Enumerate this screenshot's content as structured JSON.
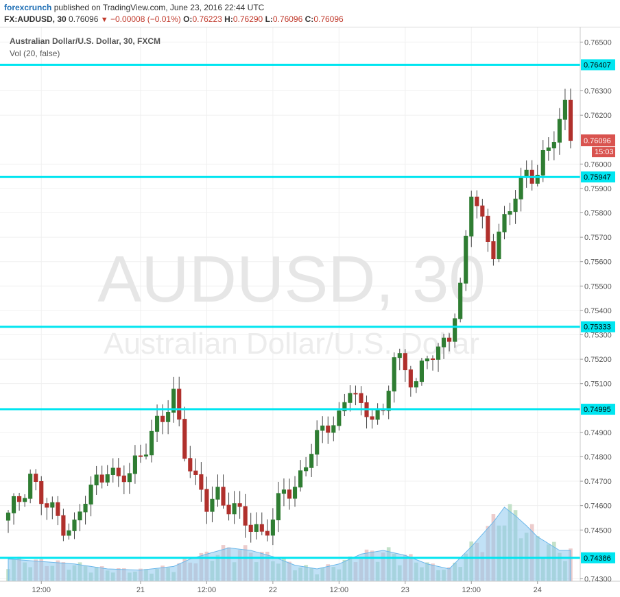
{
  "header": {
    "brand": "forexcrunch",
    "published": "published on TradingView.com, June 23, 2016 22:44 UTC",
    "symbol": "FX:AUDUSD, 30",
    "last": "0.76096",
    "arrow": "▼",
    "change": "−0.00008 (−0.01%)",
    "o_label": "O:",
    "o_value": "0.76223",
    "h_label": "H:",
    "h_value": "0.76290",
    "l_label": "L:",
    "l_value": "0.76096",
    "c_label": "C:",
    "c_value": "0.76096"
  },
  "legend": {
    "title": "Australian Dollar/U.S. Dollar, 30, FXCM",
    "volume": "Vol (20, false)"
  },
  "watermark": {
    "line1": "AUDUSD, 30",
    "line2": "Australian Dollar/U.S. Dollar"
  },
  "colors": {
    "up": "#2f7d32",
    "down": "#b0302c",
    "level": "#00e5f0",
    "volume_up": "#b9dcc0",
    "volume_down": "#e9c3c3",
    "volume_ma": "#8ec9ef",
    "price_tag": "#d9534f"
  },
  "chart_data": {
    "type": "candlestick",
    "ylim": [
      0.7429,
      0.7656
    ],
    "y_ticks": [
      "0.76500",
      "0.76300",
      "0.76200",
      "0.76000",
      "0.75900",
      "0.75800",
      "0.75700",
      "0.75600",
      "0.75500",
      "0.75400",
      "0.75300",
      "0.75200",
      "0.75100",
      "0.74900",
      "0.74800",
      "0.74700",
      "0.74600",
      "0.74500",
      "0.74300"
    ],
    "x_ticks": [
      "12:00",
      "21",
      "12:00",
      "22",
      "12:00",
      "23",
      "12:00",
      "24"
    ],
    "x_tick_positions": [
      6,
      24,
      36,
      48,
      60,
      72,
      84,
      96
    ],
    "horizontal_levels": [
      "0.76407",
      "0.75947",
      "0.75333",
      "0.74995",
      "0.74386"
    ],
    "last_price_label": "0.76096",
    "countdown_label": "15:03",
    "anchors": [
      [
        0,
        0.7455
      ],
      [
        2,
        0.7463
      ],
      [
        4,
        0.7473
      ],
      [
        6,
        0.7462
      ],
      [
        8,
        0.7457
      ],
      [
        10,
        0.7453
      ],
      [
        12,
        0.7451
      ],
      [
        14,
        0.7462
      ],
      [
        16,
        0.747
      ],
      [
        18,
        0.7477
      ],
      [
        20,
        0.7469
      ],
      [
        22,
        0.7473
      ],
      [
        24,
        0.7482
      ],
      [
        26,
        0.749
      ],
      [
        28,
        0.7494
      ],
      [
        30,
        0.7506
      ],
      [
        32,
        0.7484
      ],
      [
        34,
        0.7468
      ],
      [
        36,
        0.746
      ],
      [
        38,
        0.7466
      ],
      [
        40,
        0.746
      ],
      [
        42,
        0.7455
      ],
      [
        44,
        0.7452
      ],
      [
        46,
        0.745
      ],
      [
        48,
        0.7453
      ],
      [
        50,
        0.7466
      ],
      [
        52,
        0.7468
      ],
      [
        54,
        0.7478
      ],
      [
        56,
        0.7486
      ],
      [
        58,
        0.7494
      ],
      [
        60,
        0.7497
      ],
      [
        62,
        0.7508
      ],
      [
        64,
        0.7498
      ],
      [
        66,
        0.75
      ],
      [
        68,
        0.7497
      ],
      [
        70,
        0.752
      ],
      [
        72,
        0.7516
      ],
      [
        74,
        0.7512
      ],
      [
        76,
        0.752
      ],
      [
        78,
        0.7522
      ],
      [
        80,
        0.7532
      ],
      [
        82,
        0.7548
      ],
      [
        84,
        0.7588
      ],
      [
        86,
        0.7576
      ],
      [
        88,
        0.7566
      ],
      [
        90,
        0.7575
      ],
      [
        92,
        0.7587
      ],
      [
        94,
        0.7598
      ],
      [
        96,
        0.7596
      ],
      [
        98,
        0.7605
      ],
      [
        100,
        0.7618
      ],
      [
        101,
        0.7625
      ],
      [
        102,
        0.7609
      ]
    ],
    "volume": {
      "ylim": [
        0,
        100
      ],
      "anchors": [
        [
          0,
          18
        ],
        [
          6,
          16
        ],
        [
          12,
          14
        ],
        [
          18,
          10
        ],
        [
          24,
          9
        ],
        [
          30,
          12
        ],
        [
          33,
          18
        ],
        [
          36,
          22
        ],
        [
          40,
          27
        ],
        [
          44,
          25
        ],
        [
          48,
          20
        ],
        [
          52,
          13
        ],
        [
          56,
          10
        ],
        [
          60,
          14
        ],
        [
          64,
          22
        ],
        [
          68,
          25
        ],
        [
          72,
          21
        ],
        [
          76,
          14
        ],
        [
          80,
          10
        ],
        [
          84,
          28
        ],
        [
          88,
          48
        ],
        [
          90,
          60
        ],
        [
          92,
          53
        ],
        [
          94,
          45
        ],
        [
          96,
          36
        ],
        [
          100,
          25
        ]
      ]
    }
  }
}
